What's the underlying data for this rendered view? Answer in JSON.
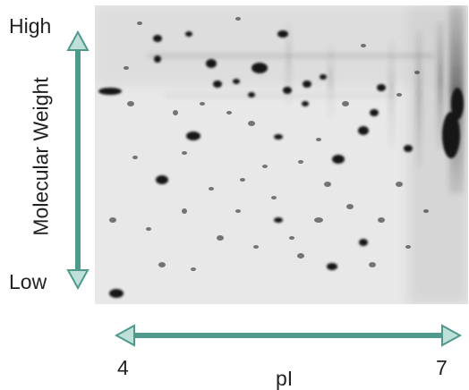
{
  "axes": {
    "y_title": "Molecular Weight",
    "y_top": "High",
    "y_bottom": "Low",
    "x_title": "pI",
    "x_min": "4",
    "x_max": "7"
  },
  "colors": {
    "arrow": "#4f9a8c",
    "arrow_outline": "#3a7a6e",
    "gel_background": "#e9e9e9",
    "spot": "#151515",
    "text": "#222222"
  },
  "gel": {
    "description_icon": "2d-gel-electrophoresis-image"
  }
}
